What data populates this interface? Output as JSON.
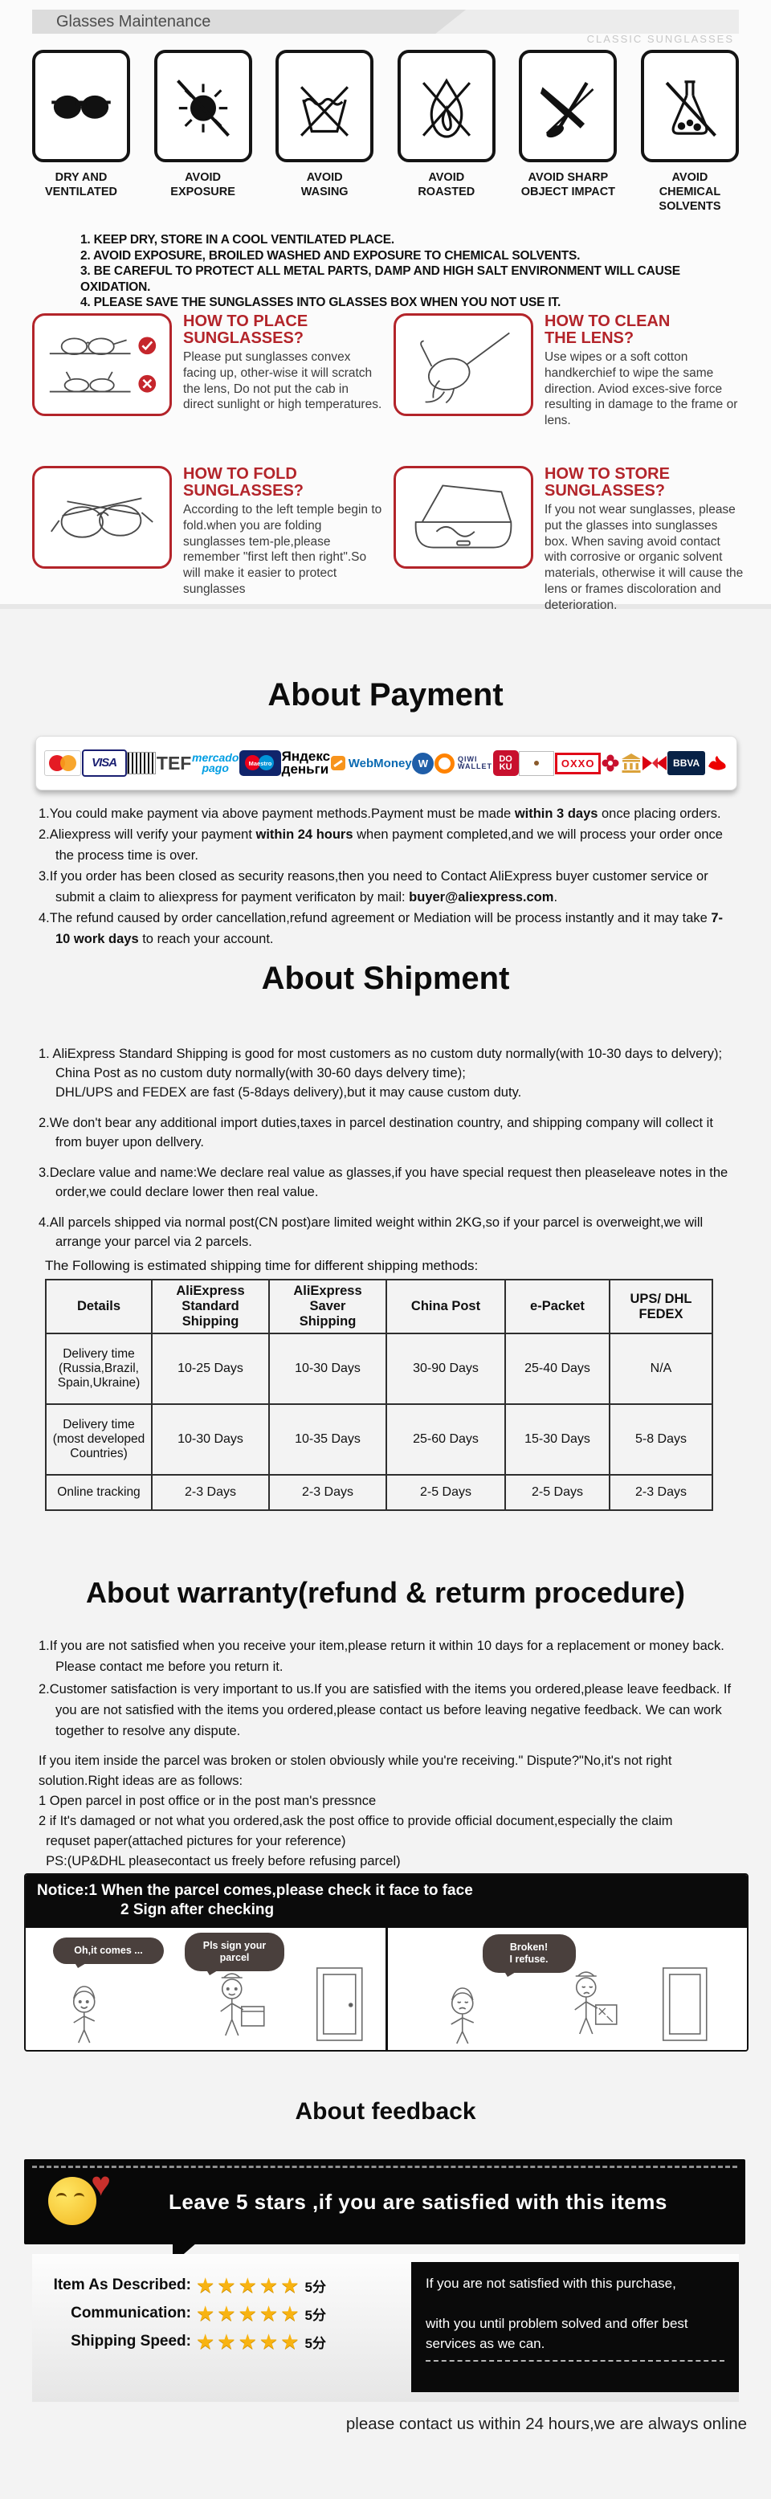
{
  "header": {
    "title": "Glasses Maintenance",
    "brand": "CLASSIC SUNGLASSES"
  },
  "care": {
    "icons": [
      {
        "label": "DRY AND\nVENTILATED"
      },
      {
        "label": "AVOID\nEXPOSURE"
      },
      {
        "label": "AVOID\nWASING"
      },
      {
        "label": "AVOID\nROASTED"
      },
      {
        "label": "AVOID SHARP\nOBJECT IMPACT"
      },
      {
        "label": "AVOID CHEMICAL\nSOLVENTS"
      }
    ],
    "rules": [
      "1. KEEP DRY, STORE IN A COOL VENTILATED PLACE.",
      "2. AVOID EXPOSURE, BROILED WASHED AND EXPOSURE TO CHEMICAL SOLVENTS.",
      "3. BE CAREFUL TO PROTECT ALL METAL PARTS, DAMP AND HIGH SALT ENVIRONMENT WILL CAUSE OXIDATION.",
      "4. PLEASE SAVE THE SUNGLASSES INTO GLASSES BOX WHEN YOU NOT USE IT."
    ]
  },
  "howto": [
    {
      "title": "HOW TO PLACE\nSUNGLASSES?",
      "body": "Please put sunglasses convex facing up, other-wise it will scratch the lens, Do not put the cab in direct sunlight or high temperatures."
    },
    {
      "title": "HOW TO CLEAN\nTHE LENS?",
      "body": "Use wipes or a soft cotton handkerchief to wipe the same direction. Aviod exces-sive force resulting in damage to the frame or lens."
    },
    {
      "title": "HOW TO FOLD\nSUNGLASSES?",
      "body": "According to the left temple begin to fold.when you are folding sunglasses tem-ple,please remember \"first left then right\".So will make it easier to protect sunglasses"
    },
    {
      "title": "HOW TO STORE\nSUNGLASSES?",
      "body": "If you not wear sunglasses, please put the glasses into sunglasses box. When saving avoid contact with corrosive or organic solvent materials, otherwise it will cause the lens or frames discoloration and deterioration."
    }
  ],
  "payment": {
    "heading": "About Payment",
    "methods": [
      {
        "name": "mastercard",
        "label": ""
      },
      {
        "name": "visa",
        "label": "VISA"
      },
      {
        "name": "boleto",
        "label": ""
      },
      {
        "name": "tef",
        "label": "TEF"
      },
      {
        "name": "mercado-pago",
        "label": "mercado\npago"
      },
      {
        "name": "maestro",
        "label": "Maestro"
      },
      {
        "name": "yandex-money",
        "label": "Яндекс\nденьги"
      },
      {
        "name": "webmoney",
        "label": "WebMoney"
      },
      {
        "name": "webmoney-globe",
        "label": "W"
      },
      {
        "name": "qiwi-wallet",
        "label": "QIWI\nWALLET"
      },
      {
        "name": "doku",
        "label": "DO\nKU"
      },
      {
        "name": "mexico-flag",
        "label": ""
      },
      {
        "name": "oxxo",
        "label": "OXXO"
      },
      {
        "name": "banamex-flower",
        "label": ""
      },
      {
        "name": "bank-transfer",
        "label": ""
      },
      {
        "name": "hsbc",
        "label": ""
      },
      {
        "name": "bbva",
        "label": "BBVA"
      },
      {
        "name": "santander",
        "label": ""
      }
    ],
    "items": [
      [
        {
          "t": "1.You could make payment via above payment methods.Payment must be made "
        },
        {
          "t": "within 3 days",
          "b": true
        },
        {
          "t": " once placing orders."
        }
      ],
      [
        {
          "t": "2.Aliexpress will verify your payment "
        },
        {
          "t": "within 24 hours",
          "b": true
        },
        {
          "t": " when payment completed,and we will process your order once the process time is over."
        }
      ],
      [
        {
          "t": "3.If you order has been closed as security reasons,then you need to Contact AliExpress buyer customer service or submit a claim to aliexpress for payment verificaton by mail: "
        },
        {
          "t": "buyer@aliexpress.com",
          "b": true
        },
        {
          "t": "."
        }
      ],
      [
        {
          "t": "4.The refund caused by order cancellation,refund agreement or Mediation will be process instantly and it may take "
        },
        {
          "t": "7-10 work days",
          "b": true
        },
        {
          "t": " to reach your account."
        }
      ]
    ]
  },
  "shipment": {
    "heading": "About Shipment",
    "items": [
      "1. AliExpress Standard Shipping is good for most customers as no custom duty normally(with 10-30 days to delvery);\nChina Post as no custom duty normally(with 30-60 days delvery time);\nDHL/UPS and FEDEX are fast (5-8days delivery),but it may cause custom duty.",
      "2.We don't bear any additional import duties,taxes in parcel destination country, and shipping company will collect it from buyer upon dellvery.",
      "3.Declare value and name:We declare real value as glasses,if you have special request then pleaseleave notes in the order,we could declare lower then real value.",
      "4.All parcels shipped via normal post(CN post)are limited weight within 2KG,so if your parcel is overweight,we will arrange your parcel via 2 parcels."
    ],
    "table_title": "The Following is estimated shipping time for different shipping methods:",
    "table": {
      "headers": [
        "Details",
        "AliExpress Standard\nShipping",
        "AliExpress Saver\nShipping",
        "China Post",
        "e-Packet",
        "UPS/ DHL\nFEDEX"
      ],
      "rows": [
        [
          "Delivery time\n(Russia,Brazil,\nSpain,Ukraine)",
          "10-25 Days",
          "10-30 Days",
          "30-90 Days",
          "25-40 Days",
          "N/A"
        ],
        [
          "Delivery time\n(most developed\nCountries)",
          "10-30 Days",
          "10-35 Days",
          "25-60 Days",
          "15-30 Days",
          "5-8 Days"
        ],
        [
          "Online tracking",
          "2-3 Days",
          "2-3 Days",
          "2-5 Days",
          "2-5 Days",
          "2-3 Days"
        ]
      ]
    }
  },
  "warranty": {
    "heading": "About warranty(refund & returm procedure)",
    "items": [
      "1.If you are not satisfied when you receive your item,please return it within 10 days for a replacement or money back. Please contact me before you return it.",
      "2.Customer satisfaction is very important to us.If you are satisfied with the items you ordered,please leave feedback. If you are not satisfied with the items you ordered,please contact us before leaving negative feedback. We can work together to resolve any dispute."
    ],
    "dispute": "If you item inside the parcel was broken or stolen obviously while you're receiving.\" Dispute?\"No,it's not right solution.Right ideas are as follows:\n1 Open parcel in post office or in the post man's pressnce\n2 if It's damaged or not what you ordered,ask the post office to provide official document,especially the claim\n  requset paper(attached pictures for your reference)\n  PS:(UP&DHL pleasecontact us freely before refusing parcel)",
    "notice_line1": "Notice:1 When the parcel comes,please check it face to face",
    "notice_line2": "2 Sign after checking",
    "comic": {
      "bubble1": "Oh,it comes ...",
      "bubble2": "Pls sign your\nparcel",
      "bubble3": "Broken!\nI refuse."
    }
  },
  "feedback": {
    "heading": "About feedback",
    "banner": "Leave 5 stars ,if you are satisfied with this items",
    "ratings": [
      {
        "label": "Item As Described:",
        "stars": "★★★★★",
        "score": "5分"
      },
      {
        "label": "Communication:",
        "stars": "★★★★★",
        "score": "5分"
      },
      {
        "label": "Shipping Speed:",
        "stars": "★★★★★",
        "score": "5分"
      }
    ],
    "note": "If you are not satisfied with this purchase,\n\nwith you until problem solved and offer best\nservices as we can.",
    "bottom_note": "please contact us within 24 hours,we are always online"
  }
}
